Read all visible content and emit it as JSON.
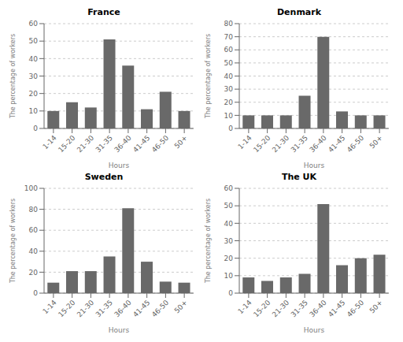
{
  "chart_data": [
    {
      "type": "bar",
      "title": "France",
      "categories": [
        "1-14",
        "15-20",
        "21-30",
        "31-35",
        "36-40",
        "41-45",
        "46-50",
        "50+"
      ],
      "values": [
        10,
        15,
        12,
        51,
        36,
        11,
        21,
        10
      ],
      "color": "#696969",
      "ylim": [
        0,
        60
      ],
      "yticks": [
        0,
        10,
        20,
        30,
        40,
        50,
        60
      ],
      "grid": true,
      "xlabel": "Hours",
      "ylabel": "The percentage of workers"
    },
    {
      "type": "bar",
      "title": "Denmark",
      "categories": [
        "1-14",
        "15-20",
        "21-30",
        "31-35",
        "36-40",
        "41-45",
        "46-50",
        "50+"
      ],
      "values": [
        10,
        10,
        10,
        25,
        70,
        13,
        10,
        10
      ],
      "color": "#696969",
      "ylim": [
        0,
        80
      ],
      "yticks": [
        0,
        10,
        20,
        30,
        40,
        50,
        60,
        70,
        80
      ],
      "grid": true,
      "xlabel": "Hours",
      "ylabel": "The percentage of workers"
    },
    {
      "type": "bar",
      "title": "Sweden",
      "categories": [
        "1-14",
        "15-20",
        "21-30",
        "31-35",
        "36-40",
        "41-45",
        "46-50",
        "50+"
      ],
      "values": [
        10,
        21,
        21,
        35,
        81,
        30,
        11,
        10
      ],
      "color": "#696969",
      "ylim": [
        0,
        100
      ],
      "yticks": [
        0,
        20,
        40,
        60,
        80,
        100
      ],
      "grid": true,
      "xlabel": "Hours",
      "ylabel": "The percentage of workers"
    },
    {
      "type": "bar",
      "title": "The UK",
      "categories": [
        "1-14",
        "15-20",
        "21-30",
        "31-35",
        "36-40",
        "41-45",
        "46-50",
        "50+"
      ],
      "values": [
        9,
        7,
        9,
        11,
        51,
        16,
        20,
        22
      ],
      "color": "#696969",
      "ylim": [
        0,
        60
      ],
      "yticks": [
        0,
        10,
        20,
        30,
        40,
        50,
        60
      ],
      "grid": true,
      "xlabel": "Hours",
      "ylabel": "The percentage of workers"
    }
  ]
}
